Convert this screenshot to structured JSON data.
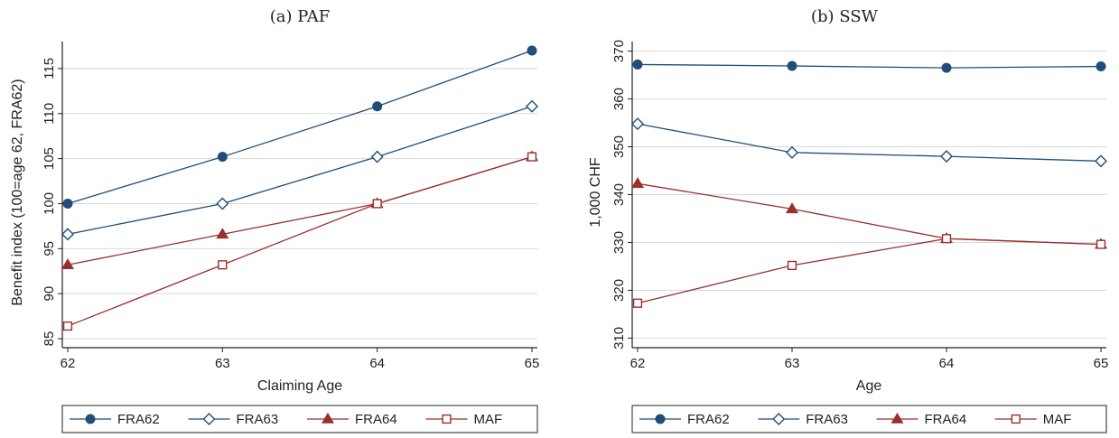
{
  "colors": {
    "blue": "#1f4e79",
    "red": "#9b2f2f",
    "grid": "#d9d9d9",
    "axis": "#222222"
  },
  "chart_data": [
    {
      "type": "line",
      "title": "(a) PAF",
      "xlabel": "Claiming Age",
      "ylabel": "Benefit index (100=age 62, FRA62)",
      "x": [
        62,
        63,
        64,
        65
      ],
      "xticks": [
        "62",
        "63",
        "64",
        "65"
      ],
      "yticks": [
        "85",
        "90",
        "95",
        "100",
        "105",
        "110",
        "115"
      ],
      "ylim": [
        84,
        118
      ],
      "grid": true,
      "legend_position": "bottom",
      "series": [
        {
          "name": "FRA62",
          "values": [
            100,
            105.2,
            110.8,
            117.0
          ],
          "color": "#1f4e79",
          "marker": "filled-circle"
        },
        {
          "name": "FRA63",
          "values": [
            96.6,
            100,
            105.2,
            110.8
          ],
          "color": "#1f4e79",
          "marker": "hollow-diamond"
        },
        {
          "name": "FRA64",
          "values": [
            93.2,
            96.6,
            100,
            105.2
          ],
          "color": "#9b2f2f",
          "marker": "filled-triangle"
        },
        {
          "name": "MAF",
          "values": [
            86.4,
            93.2,
            100,
            105.2
          ],
          "color": "#9b2f2f",
          "marker": "hollow-square"
        }
      ]
    },
    {
      "type": "line",
      "title": "(b) SSW",
      "xlabel": "Age",
      "ylabel": "1,000 CHF",
      "x": [
        62,
        63,
        64,
        65
      ],
      "xticks": [
        "62",
        "63",
        "64",
        "65"
      ],
      "yticks": [
        "310",
        "320",
        "330",
        "340",
        "350",
        "360",
        "370"
      ],
      "ylim": [
        308,
        372
      ],
      "grid": true,
      "legend_position": "bottom",
      "series": [
        {
          "name": "FRA62",
          "values": [
            367.2,
            366.9,
            366.5,
            366.8
          ],
          "color": "#1f4e79",
          "marker": "filled-circle"
        },
        {
          "name": "FRA63",
          "values": [
            354.8,
            348.8,
            348.0,
            347.0
          ],
          "color": "#1f4e79",
          "marker": "hollow-diamond"
        },
        {
          "name": "FRA64",
          "values": [
            342.3,
            337.0,
            330.8,
            329.6
          ],
          "color": "#9b2f2f",
          "marker": "filled-triangle"
        },
        {
          "name": "MAF",
          "values": [
            317.3,
            325.2,
            330.8,
            329.6
          ],
          "color": "#9b2f2f",
          "marker": "hollow-square"
        }
      ]
    }
  ]
}
